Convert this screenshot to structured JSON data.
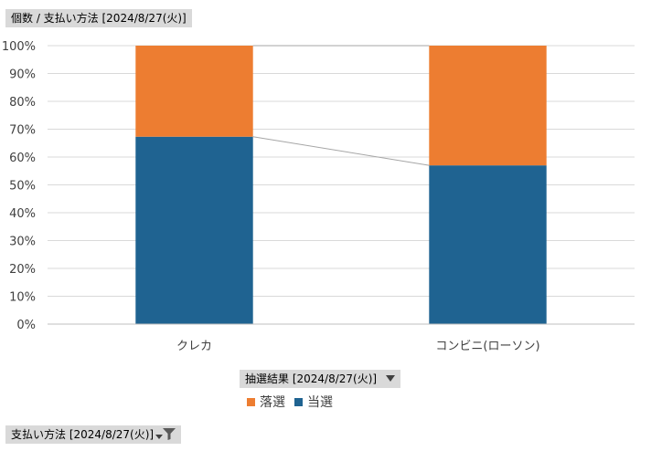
{
  "value_field_button": {
    "label": "個数 / 支払い方法 [2024/8/27(火)]"
  },
  "legend_field_button": {
    "label": "抽選結果 [2024/8/27(火)]"
  },
  "filter_field_button": {
    "label": "支払い方法 [2024/8/27(火)]"
  },
  "legend": {
    "items": [
      {
        "name": "落選",
        "color": "#ED7D31"
      },
      {
        "name": "当選",
        "color": "#1F6391"
      }
    ]
  },
  "icons": {
    "dropdown": "chevron-down-icon",
    "filter": "filter-icon"
  },
  "chart_data": {
    "type": "bar",
    "stacked": "percent",
    "categories": [
      "クレカ",
      "コンビニ(ローソン)"
    ],
    "series": [
      {
        "name": "当選",
        "values": [
          67.3,
          57.0
        ],
        "color": "#1F6391"
      },
      {
        "name": "落選",
        "values": [
          32.7,
          43.0
        ],
        "color": "#ED7D31"
      }
    ],
    "ylim": [
      0,
      100
    ],
    "yticks": [
      "0%",
      "10%",
      "20%",
      "30%",
      "40%",
      "50%",
      "60%",
      "70%",
      "80%",
      "90%",
      "100%"
    ],
    "grid": true,
    "series_lines": true,
    "legend_position": "bottom"
  }
}
